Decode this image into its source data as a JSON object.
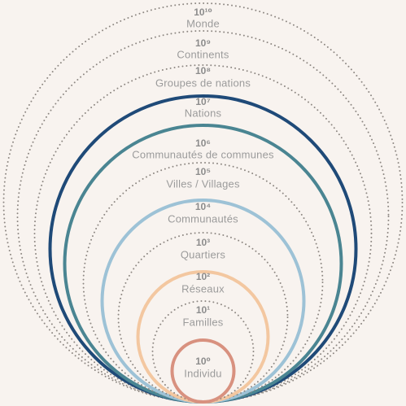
{
  "levels": [
    {
      "power": "10⁰",
      "name": "Individu",
      "color": "#d8917f",
      "line": "solid"
    },
    {
      "power": "10¹",
      "name": "Familles",
      "color": "#8d8782",
      "line": "dotted"
    },
    {
      "power": "10²",
      "name": "Réseaux",
      "color": "#f3c7a0",
      "line": "solid"
    },
    {
      "power": "10³",
      "name": "Quartiers",
      "color": "#8d8782",
      "line": "dotted"
    },
    {
      "power": "10⁴",
      "name": "Communautés",
      "color": "#9dc2d6",
      "line": "solid"
    },
    {
      "power": "10⁵",
      "name": "Villes / Villages",
      "color": "#8d8782",
      "line": "dotted"
    },
    {
      "power": "10⁶",
      "name": "Communautés de communes",
      "color": "#4a8592",
      "line": "solid"
    },
    {
      "power": "10⁷",
      "name": "Nations",
      "color": "#1f4a78",
      "line": "solid"
    },
    {
      "power": "10⁸",
      "name": "Groupes de nations",
      "color": "#8d8782",
      "line": "dotted"
    },
    {
      "power": "10⁹",
      "name": "Continents",
      "color": "#8d8782",
      "line": "dotted"
    },
    {
      "power": "10¹⁰",
      "name": "Monde",
      "color": "#8d8782",
      "line": "dotted"
    }
  ]
}
